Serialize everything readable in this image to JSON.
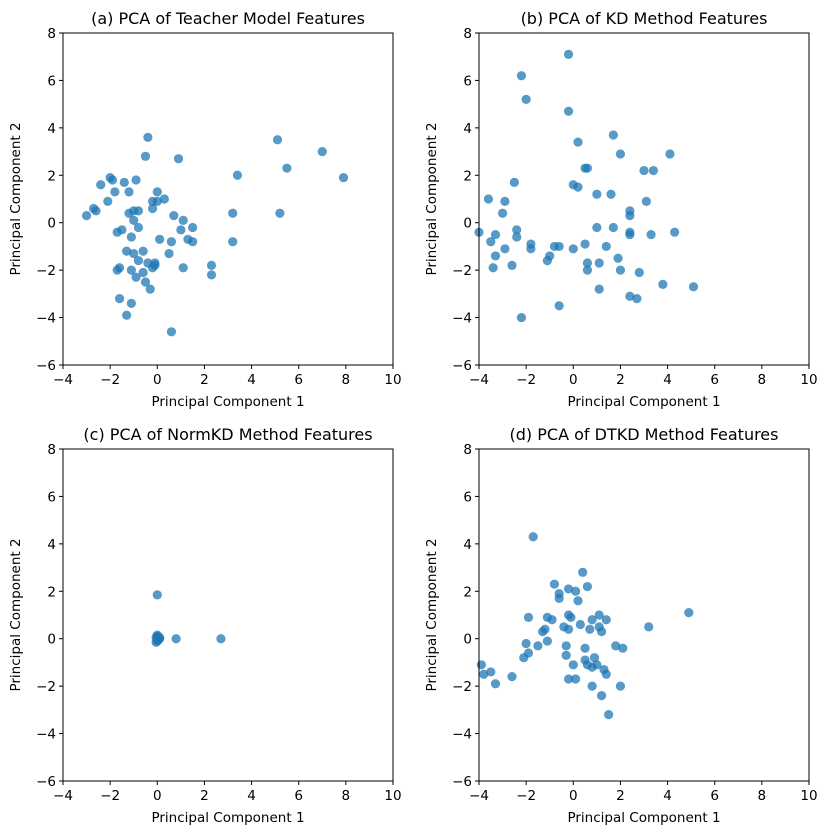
{
  "chart_data": [
    {
      "type": "scatter",
      "title": "(a) PCA of Teacher Model Features",
      "xlabel": "Principal Component 1",
      "ylabel": "Principal Component 2",
      "xlim": [
        -4,
        10
      ],
      "ylim": [
        -6,
        8
      ],
      "xticks": [
        -4,
        -2,
        0,
        2,
        4,
        6,
        8,
        10
      ],
      "yticks": [
        -6,
        -4,
        -2,
        0,
        2,
        4,
        6,
        8
      ],
      "points": [
        [
          -3.0,
          0.3
        ],
        [
          -2.7,
          0.6
        ],
        [
          -2.6,
          0.5
        ],
        [
          -2.4,
          1.6
        ],
        [
          -2.1,
          0.9
        ],
        [
          -2.0,
          1.9
        ],
        [
          -1.9,
          1.8
        ],
        [
          -1.8,
          1.3
        ],
        [
          -1.7,
          -0.4
        ],
        [
          -1.7,
          -2.0
        ],
        [
          -1.6,
          -1.9
        ],
        [
          -1.6,
          -3.2
        ],
        [
          -1.5,
          -0.3
        ],
        [
          -1.4,
          1.7
        ],
        [
          -1.3,
          -1.2
        ],
        [
          -1.2,
          0.4
        ],
        [
          -1.2,
          1.3
        ],
        [
          -1.1,
          -3.4
        ],
        [
          -1.1,
          -2.0
        ],
        [
          -1.0,
          0.5
        ],
        [
          -1.0,
          -1.3
        ],
        [
          -1.0,
          0.1
        ],
        [
          -0.9,
          1.8
        ],
        [
          -0.9,
          -2.3
        ],
        [
          -0.8,
          -1.6
        ],
        [
          -0.8,
          0.5
        ],
        [
          -0.8,
          -0.2
        ],
        [
          -0.6,
          -2.1
        ],
        [
          -0.5,
          2.8
        ],
        [
          -0.5,
          -2.5
        ],
        [
          -0.4,
          3.6
        ],
        [
          -0.4,
          -1.7
        ],
        [
          -0.3,
          -2.8
        ],
        [
          -0.2,
          -1.9
        ],
        [
          -0.2,
          0.9
        ],
        [
          -0.1,
          -1.7
        ],
        [
          -0.1,
          -1.8
        ],
        [
          0.0,
          1.3
        ],
        [
          0.0,
          0.9
        ],
        [
          0.1,
          -0.7
        ],
        [
          0.3,
          1.0
        ],
        [
          0.5,
          -1.3
        ],
        [
          0.6,
          -0.8
        ],
        [
          0.7,
          0.3
        ],
        [
          0.9,
          2.7
        ],
        [
          1.0,
          -0.3
        ],
        [
          1.1,
          0.1
        ],
        [
          1.1,
          -1.9
        ],
        [
          1.3,
          -0.7
        ],
        [
          1.5,
          -0.8
        ],
        [
          1.5,
          -0.2
        ],
        [
          2.3,
          -1.8
        ],
        [
          2.3,
          -2.2
        ],
        [
          3.2,
          0.4
        ],
        [
          3.2,
          -0.8
        ],
        [
          3.4,
          2.0
        ],
        [
          5.1,
          3.5
        ],
        [
          5.2,
          0.4
        ],
        [
          5.5,
          2.3
        ],
        [
          7.0,
          3.0
        ],
        [
          7.9,
          1.9
        ],
        [
          -1.3,
          -3.9
        ],
        [
          -0.6,
          -1.2
        ],
        [
          0.6,
          -4.6
        ],
        [
          -0.2,
          0.6
        ],
        [
          -1.1,
          -0.6
        ]
      ]
    },
    {
      "type": "scatter",
      "title": "(b) PCA of KD Method Features",
      "xlabel": "Principal Component 1",
      "ylabel": "Principal Component 2",
      "xlim": [
        -4,
        10
      ],
      "ylim": [
        -6,
        8
      ],
      "xticks": [
        -4,
        -2,
        0,
        2,
        4,
        6,
        8,
        10
      ],
      "yticks": [
        -6,
        -4,
        -2,
        0,
        2,
        4,
        6,
        8
      ],
      "points": [
        [
          -4.0,
          -0.4
        ],
        [
          -3.6,
          1.0
        ],
        [
          -3.5,
          -0.8
        ],
        [
          -3.4,
          -1.9
        ],
        [
          -3.3,
          -0.5
        ],
        [
          -3.3,
          -1.4
        ],
        [
          -3.0,
          0.4
        ],
        [
          -2.9,
          -1.1
        ],
        [
          -2.9,
          0.9
        ],
        [
          -2.6,
          -1.8
        ],
        [
          -2.5,
          1.7
        ],
        [
          -2.4,
          -0.3
        ],
        [
          -2.4,
          -0.6
        ],
        [
          -2.2,
          6.2
        ],
        [
          -2.2,
          -4.0
        ],
        [
          -2.0,
          5.2
        ],
        [
          -1.8,
          -0.9
        ],
        [
          -1.8,
          -1.1
        ],
        [
          -1.1,
          -1.6
        ],
        [
          -1.0,
          -1.4
        ],
        [
          -0.6,
          -1.0
        ],
        [
          -0.6,
          -3.5
        ],
        [
          -0.2,
          7.1
        ],
        [
          -0.2,
          4.7
        ],
        [
          0.0,
          1.6
        ],
        [
          0.0,
          -1.1
        ],
        [
          0.2,
          1.5
        ],
        [
          0.2,
          3.4
        ],
        [
          0.5,
          2.3
        ],
        [
          0.5,
          -0.9
        ],
        [
          0.6,
          2.3
        ],
        [
          0.6,
          -1.7
        ],
        [
          0.6,
          -2.0
        ],
        [
          1.0,
          1.2
        ],
        [
          1.0,
          -0.2
        ],
        [
          1.1,
          -1.7
        ],
        [
          1.1,
          -2.8
        ],
        [
          1.4,
          -1.0
        ],
        [
          1.6,
          1.2
        ],
        [
          1.7,
          -0.2
        ],
        [
          1.7,
          3.7
        ],
        [
          1.9,
          -1.5
        ],
        [
          2.0,
          2.9
        ],
        [
          2.0,
          -2.0
        ],
        [
          2.4,
          0.5
        ],
        [
          2.4,
          0.3
        ],
        [
          2.4,
          -0.4
        ],
        [
          2.4,
          -0.5
        ],
        [
          2.4,
          -3.1
        ],
        [
          2.7,
          -3.2
        ],
        [
          2.8,
          -2.1
        ],
        [
          3.0,
          2.2
        ],
        [
          3.1,
          0.9
        ],
        [
          3.3,
          -0.5
        ],
        [
          3.4,
          2.2
        ],
        [
          3.8,
          -2.6
        ],
        [
          4.1,
          2.9
        ],
        [
          4.3,
          -0.4
        ],
        [
          5.1,
          -2.7
        ],
        [
          -0.8,
          -1.0
        ]
      ]
    },
    {
      "type": "scatter",
      "title": "(c) PCA of NormKD Method Features",
      "xlabel": "Principal Component 1",
      "ylabel": "Principal Component 2",
      "xlim": [
        -4,
        10
      ],
      "ylim": [
        -6,
        8
      ],
      "xticks": [
        -4,
        -2,
        0,
        2,
        4,
        6,
        8,
        10
      ],
      "yticks": [
        -6,
        -4,
        -2,
        0,
        2,
        4,
        6,
        8
      ],
      "points": [
        [
          0.0,
          1.85
        ],
        [
          0.0,
          0.1
        ],
        [
          0.0,
          0.05
        ],
        [
          0.0,
          -0.05
        ],
        [
          0.0,
          -0.1
        ],
        [
          -0.05,
          -0.15
        ],
        [
          0.05,
          0.0
        ],
        [
          0.1,
          0.0
        ],
        [
          0.0,
          0.15
        ],
        [
          -0.05,
          0.05
        ],
        [
          0.1,
          0.05
        ],
        [
          0.05,
          -0.05
        ],
        [
          0.8,
          0.0
        ],
        [
          2.7,
          0.0
        ]
      ]
    },
    {
      "type": "scatter",
      "title": "(d) PCA of DTKD Method Features",
      "xlabel": "Principal Component 1",
      "ylabel": "Principal Component 2",
      "xlim": [
        -4,
        10
      ],
      "ylim": [
        -6,
        8
      ],
      "xticks": [
        -4,
        -2,
        0,
        2,
        4,
        6,
        8,
        10
      ],
      "yticks": [
        -6,
        -4,
        -2,
        0,
        2,
        4,
        6,
        8
      ],
      "points": [
        [
          -3.9,
          -1.1
        ],
        [
          -3.8,
          -1.5
        ],
        [
          -3.5,
          -1.4
        ],
        [
          -3.3,
          -1.9
        ],
        [
          -2.6,
          -1.6
        ],
        [
          -2.1,
          -0.8
        ],
        [
          -2.0,
          -0.2
        ],
        [
          -1.9,
          0.9
        ],
        [
          -1.9,
          -0.6
        ],
        [
          -1.7,
          4.3
        ],
        [
          -1.5,
          -0.3
        ],
        [
          -1.3,
          0.3
        ],
        [
          -1.1,
          0.9
        ],
        [
          -1.1,
          -0.1
        ],
        [
          -0.9,
          0.8
        ],
        [
          -0.8,
          2.3
        ],
        [
          -0.6,
          1.7
        ],
        [
          -0.6,
          1.9
        ],
        [
          -0.4,
          0.5
        ],
        [
          -0.3,
          -0.3
        ],
        [
          -0.3,
          -0.7
        ],
        [
          -0.2,
          2.1
        ],
        [
          -0.2,
          1.0
        ],
        [
          -0.2,
          -1.7
        ],
        [
          -0.1,
          0.9
        ],
        [
          0.0,
          -1.1
        ],
        [
          0.1,
          2.0
        ],
        [
          0.1,
          -1.7
        ],
        [
          0.2,
          1.6
        ],
        [
          0.3,
          0.6
        ],
        [
          0.4,
          2.8
        ],
        [
          0.5,
          -0.4
        ],
        [
          0.5,
          -0.9
        ],
        [
          0.6,
          -1.1
        ],
        [
          0.6,
          2.2
        ],
        [
          0.7,
          0.4
        ],
        [
          0.8,
          0.8
        ],
        [
          0.8,
          -1.2
        ],
        [
          0.8,
          -2.0
        ],
        [
          0.9,
          -0.8
        ],
        [
          1.0,
          -1.1
        ],
        [
          1.1,
          1.0
        ],
        [
          1.2,
          0.3
        ],
        [
          1.2,
          -2.4
        ],
        [
          1.3,
          -1.3
        ],
        [
          1.4,
          0.8
        ],
        [
          1.4,
          -1.5
        ],
        [
          1.5,
          -3.2
        ],
        [
          1.8,
          -0.3
        ],
        [
          2.0,
          -2.0
        ],
        [
          2.1,
          -0.4
        ],
        [
          3.2,
          0.5
        ],
        [
          4.9,
          1.1
        ],
        [
          -0.2,
          0.4
        ],
        [
          1.1,
          0.5
        ],
        [
          -1.2,
          0.4
        ]
      ]
    }
  ]
}
